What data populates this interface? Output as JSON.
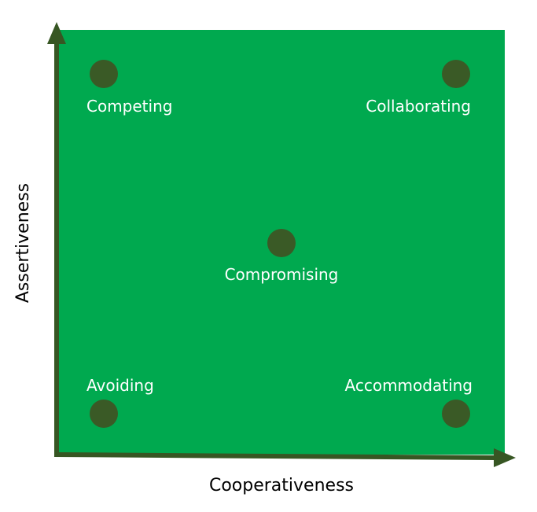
{
  "axes": {
    "x_label": "Cooperativeness",
    "y_label": "Assertiveness"
  },
  "styles": [
    {
      "label": "Competing",
      "position": "top-left"
    },
    {
      "label": "Collaborating",
      "position": "top-right"
    },
    {
      "label": "Compromising",
      "position": "center"
    },
    {
      "label": "Avoiding",
      "position": "bottom-left"
    },
    {
      "label": "Accommodating",
      "position": "bottom-right"
    }
  ],
  "colors": {
    "background": "#00a94f",
    "axis": "#375623",
    "dot": "#3a5a26",
    "label": "#ffffff"
  }
}
